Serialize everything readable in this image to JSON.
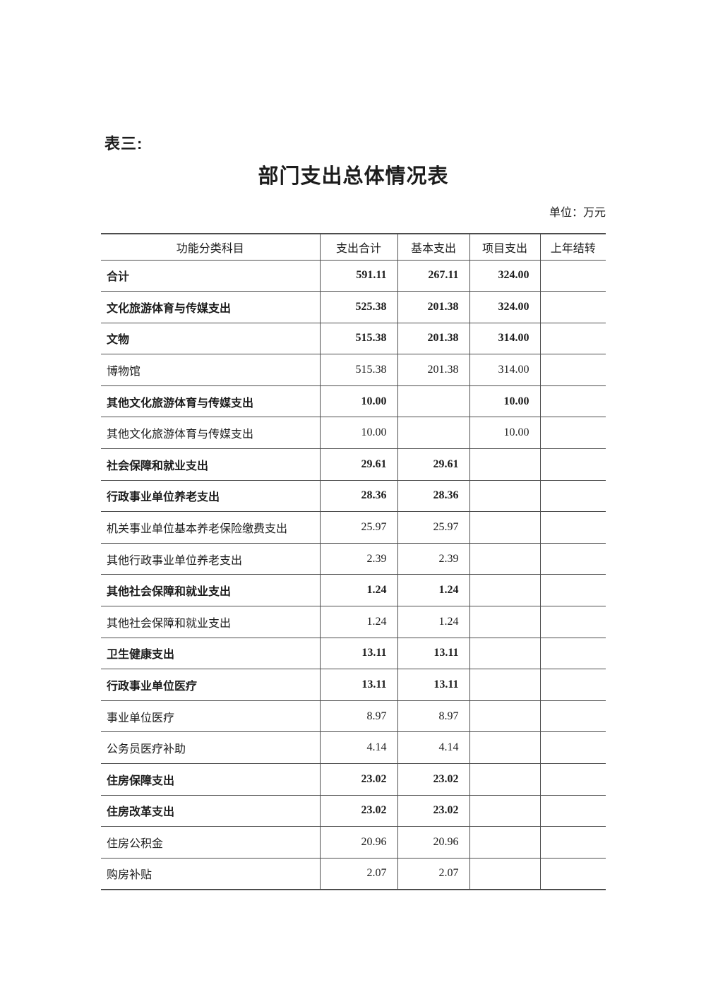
{
  "colors": {
    "page_bg": "#ffffff",
    "text": "#1c1c1c",
    "border": "#4d4d4d"
  },
  "header": {
    "table_label": "表三:",
    "title": "部门支出总体情况表",
    "unit_note": "单位：万元"
  },
  "table": {
    "columns": [
      {
        "key": "subject",
        "label": "功能分类科目"
      },
      {
        "key": "total",
        "label": "支出合计"
      },
      {
        "key": "basic",
        "label": "基本支出"
      },
      {
        "key": "project",
        "label": "项目支出"
      },
      {
        "key": "carryover",
        "label": "上年结转"
      }
    ],
    "rows": [
      {
        "subject": "合计",
        "bold": true,
        "total": "591.11",
        "basic": "267.11",
        "project": "324.00",
        "carryover": ""
      },
      {
        "subject": "文化旅游体育与传媒支出",
        "bold": true,
        "total": "525.38",
        "basic": "201.38",
        "project": "324.00",
        "carryover": ""
      },
      {
        "subject": "文物",
        "bold": true,
        "total": "515.38",
        "basic": "201.38",
        "project": "314.00",
        "carryover": ""
      },
      {
        "subject": "博物馆",
        "bold": false,
        "total": "515.38",
        "basic": "201.38",
        "project": "314.00",
        "carryover": ""
      },
      {
        "subject": "其他文化旅游体育与传媒支出",
        "bold": true,
        "total": "10.00",
        "basic": "",
        "project": "10.00",
        "carryover": ""
      },
      {
        "subject": "其他文化旅游体育与传媒支出",
        "bold": false,
        "total": "10.00",
        "basic": "",
        "project": "10.00",
        "carryover": ""
      },
      {
        "subject": "社会保障和就业支出",
        "bold": true,
        "total": "29.61",
        "basic": "29.61",
        "project": "",
        "carryover": ""
      },
      {
        "subject": "行政事业单位养老支出",
        "bold": true,
        "total": "28.36",
        "basic": "28.36",
        "project": "",
        "carryover": ""
      },
      {
        "subject": "机关事业单位基本养老保险缴费支出",
        "bold": false,
        "total": "25.97",
        "basic": "25.97",
        "project": "",
        "carryover": ""
      },
      {
        "subject": "其他行政事业单位养老支出",
        "bold": false,
        "total": "2.39",
        "basic": "2.39",
        "project": "",
        "carryover": ""
      },
      {
        "subject": "其他社会保障和就业支出",
        "bold": true,
        "total": "1.24",
        "basic": "1.24",
        "project": "",
        "carryover": ""
      },
      {
        "subject": "其他社会保障和就业支出",
        "bold": false,
        "total": "1.24",
        "basic": "1.24",
        "project": "",
        "carryover": ""
      },
      {
        "subject": "卫生健康支出",
        "bold": true,
        "total": "13.11",
        "basic": "13.11",
        "project": "",
        "carryover": ""
      },
      {
        "subject": "行政事业单位医疗",
        "bold": true,
        "total": "13.11",
        "basic": "13.11",
        "project": "",
        "carryover": ""
      },
      {
        "subject": "事业单位医疗",
        "bold": false,
        "total": "8.97",
        "basic": "8.97",
        "project": "",
        "carryover": ""
      },
      {
        "subject": "公务员医疗补助",
        "bold": false,
        "total": "4.14",
        "basic": "4.14",
        "project": "",
        "carryover": ""
      },
      {
        "subject": "住房保障支出",
        "bold": true,
        "total": "23.02",
        "basic": "23.02",
        "project": "",
        "carryover": ""
      },
      {
        "subject": "住房改革支出",
        "bold": true,
        "total": "23.02",
        "basic": "23.02",
        "project": "",
        "carryover": ""
      },
      {
        "subject": "住房公积金",
        "bold": false,
        "total": "20.96",
        "basic": "20.96",
        "project": "",
        "carryover": ""
      },
      {
        "subject": "购房补贴",
        "bold": false,
        "total": "2.07",
        "basic": "2.07",
        "project": "",
        "carryover": ""
      }
    ]
  }
}
